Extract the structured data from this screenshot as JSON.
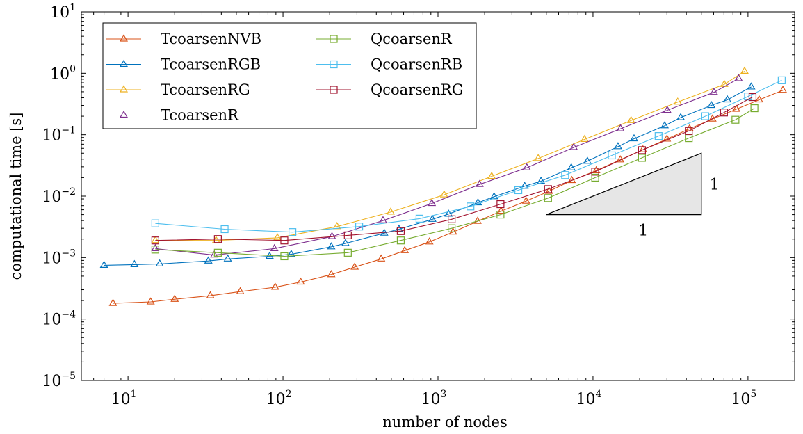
{
  "chart_data": {
    "type": "line",
    "xscale": "log",
    "yscale": "log",
    "xlabel": "number of nodes",
    "ylabel": "computational time [s]",
    "xlim": [
      5,
      200000
    ],
    "ylim": [
      1e-05,
      10
    ],
    "xticks": [
      {
        "base": "10",
        "exp": "1",
        "value": 10
      },
      {
        "base": "10",
        "exp": "2",
        "value": 100
      },
      {
        "base": "10",
        "exp": "3",
        "value": 1000
      },
      {
        "base": "10",
        "exp": "4",
        "value": 10000
      },
      {
        "base": "10",
        "exp": "5",
        "value": 100000
      }
    ],
    "yticks": [
      {
        "base": "10",
        "exp": "−5",
        "value": 1e-05
      },
      {
        "base": "10",
        "exp": "−4",
        "value": 0.0001
      },
      {
        "base": "10",
        "exp": "−3",
        "value": 0.001
      },
      {
        "base": "10",
        "exp": "−2",
        "value": 0.01
      },
      {
        "base": "10",
        "exp": "−1",
        "value": 0.1
      },
      {
        "base": "10",
        "exp": "0",
        "value": 1
      },
      {
        "base": "10",
        "exp": "1",
        "value": 10
      }
    ],
    "grid": false,
    "legend_position": "top-left",
    "series": [
      {
        "name": "TcoarsenNVB",
        "color": "#d95319",
        "marker": "triangle",
        "x": [
          8,
          14,
          20,
          34,
          53,
          89,
          130,
          205,
          290,
          430,
          610,
          880,
          1250,
          1800,
          2550,
          3700,
          5200,
          7300,
          10500,
          15000,
          21000,
          30000,
          42000,
          59000,
          84000,
          118000,
          168000
        ],
        "y": [
          0.00018,
          0.00019,
          0.00021,
          0.00024,
          0.00028,
          0.00033,
          0.0004,
          0.00053,
          0.0007,
          0.00095,
          0.0013,
          0.0018,
          0.0026,
          0.0039,
          0.0057,
          0.0083,
          0.012,
          0.018,
          0.026,
          0.039,
          0.057,
          0.085,
          0.125,
          0.18,
          0.26,
          0.37,
          0.53
        ]
      },
      {
        "name": "TcoarsenRGB",
        "color": "#0072bd",
        "marker": "triangle",
        "x": [
          7,
          11,
          16,
          33,
          44,
          82,
          113,
          205,
          253,
          450,
          560,
          920,
          1170,
          1810,
          2300,
          3620,
          4620,
          7240,
          9200,
          14500,
          18400,
          29000,
          36800,
          58000,
          73600,
          105000
        ],
        "y": [
          0.00075,
          0.00077,
          0.00079,
          0.00088,
          0.00095,
          0.00105,
          0.00113,
          0.0015,
          0.0017,
          0.0025,
          0.0029,
          0.0042,
          0.0051,
          0.0078,
          0.0098,
          0.0145,
          0.0175,
          0.029,
          0.037,
          0.064,
          0.086,
          0.14,
          0.19,
          0.3,
          0.37,
          0.6
        ]
      },
      {
        "name": "TcoarsenRG",
        "color": "#edb120",
        "marker": "triangle",
        "x": [
          15,
          37,
          92,
          223,
          495,
          1095,
          2220,
          4430,
          8830,
          17600,
          35200,
          70300,
          95000
        ],
        "y": [
          0.0019,
          0.0019,
          0.0021,
          0.0032,
          0.0055,
          0.0105,
          0.021,
          0.041,
          0.084,
          0.17,
          0.34,
          0.66,
          1.08
        ]
      },
      {
        "name": "TcoarsenR",
        "color": "#7e2f8e",
        "marker": "triangle",
        "x": [
          15,
          36,
          88,
          207,
          442,
          913,
          1855,
          3740,
          7510,
          15050,
          30140,
          60300,
          87000
        ],
        "y": [
          0.0014,
          0.0011,
          0.0014,
          0.0022,
          0.004,
          0.0076,
          0.0155,
          0.029,
          0.062,
          0.125,
          0.25,
          0.49,
          0.82
        ]
      },
      {
        "name": "QcoarsenR",
        "color": "#77ac30",
        "marker": "square",
        "x": [
          15,
          38,
          102,
          262,
          575,
          1225,
          2530,
          5130,
          10330,
          20700,
          41500,
          83000,
          110000
        ],
        "y": [
          0.00135,
          0.0012,
          0.00105,
          0.0012,
          0.0019,
          0.003,
          0.005,
          0.0093,
          0.02,
          0.042,
          0.088,
          0.175,
          0.27
        ]
      },
      {
        "name": "QcoarsenRB",
        "color": "#4dbeee",
        "marker": "square",
        "x": [
          15,
          42,
          115,
          310,
          760,
          1620,
          3300,
          6610,
          13230,
          26500,
          53000,
          100000,
          165000
        ],
        "y": [
          0.0036,
          0.0029,
          0.0026,
          0.0032,
          0.0043,
          0.0068,
          0.0125,
          0.022,
          0.046,
          0.095,
          0.2,
          0.42,
          0.77
        ]
      },
      {
        "name": "QcoarsenRG",
        "color": "#a2142f",
        "marker": "square",
        "x": [
          15,
          38,
          102,
          262,
          575,
          1225,
          2530,
          5130,
          10330,
          20700,
          41500,
          70000,
          107000
        ],
        "y": [
          0.0019,
          0.002,
          0.0019,
          0.0023,
          0.0027,
          0.0042,
          0.0074,
          0.013,
          0.025,
          0.056,
          0.115,
          0.23,
          0.41
        ]
      }
    ],
    "slope_triangle": {
      "corner_x": 50000,
      "corner_y": 0.005,
      "left_x": 5000,
      "top_y": 0.05,
      "label_horizontal": "1",
      "label_vertical": "1",
      "fill": "#e6e6e6"
    }
  }
}
